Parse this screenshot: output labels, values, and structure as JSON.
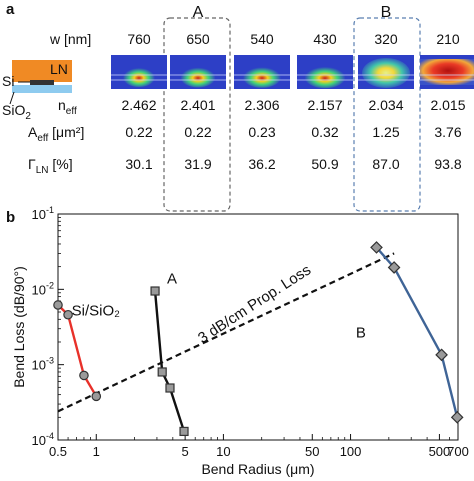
{
  "panel_a": {
    "label": "a",
    "w_header": "w [nm]",
    "groups": [
      {
        "label": "A",
        "color": "#555555"
      },
      {
        "label": "B",
        "color": "#5a7fb0"
      }
    ],
    "widths": [
      "760",
      "650",
      "540",
      "430",
      "320",
      "210"
    ],
    "row_labels": {
      "neff": "n",
      "neff_sub": "eff",
      "aeff": "A",
      "aeff_sub": "eff",
      "aeff_unit": " [μm²]",
      "gamma": "Γ",
      "gamma_sub": "LN",
      "gamma_unit": " [%]"
    },
    "neff": [
      "2.462",
      "2.401",
      "2.306",
      "2.157",
      "2.034",
      "2.015"
    ],
    "aeff": [
      "0.22",
      "0.22",
      "0.23",
      "0.32",
      "1.25",
      "3.76"
    ],
    "gamma": [
      "30.1",
      "31.9",
      "36.2",
      "50.9",
      "87.0",
      "93.8"
    ],
    "schematic": {
      "ln": "LN",
      "si": "Si",
      "sio2": "SiO",
      "sio2_sub": "2",
      "colors": {
        "ln": "#f08a24",
        "si": "#333333",
        "sio2": "#8ecbef"
      }
    }
  },
  "panel_b_label": "b",
  "chart_data": {
    "type": "scatter",
    "xlabel": "Bend Radius (μm)",
    "ylabel": "Bend Loss (dB/90°)",
    "xscale": "log",
    "yscale": "log",
    "xlim": [
      0.5,
      700
    ],
    "ylim": [
      0.0001,
      0.1
    ],
    "x_ticks": [
      0.5,
      1,
      5,
      10,
      50,
      100,
      500,
      700
    ],
    "x_tick_labels": [
      "0.5",
      "1",
      "5",
      "10",
      "50",
      "100",
      "500",
      "700"
    ],
    "y_ticks": [
      0.0001,
      0.001,
      0.01,
      0.1
    ],
    "y_tick_labels": [
      {
        "base": "10",
        "exp": "-4"
      },
      {
        "base": "10",
        "exp": "-3"
      },
      {
        "base": "10",
        "exp": "-2"
      },
      {
        "base": "10",
        "exp": "-1"
      }
    ],
    "grid": false,
    "series": [
      {
        "name": "Si/SiO₂",
        "color": "#e8312a",
        "marker": "circle",
        "x": [
          0.5,
          0.6,
          0.8,
          1.0
        ],
        "y": [
          0.0062,
          0.0046,
          0.00072,
          0.00038
        ]
      },
      {
        "name": "A",
        "color": "#111111",
        "marker": "square",
        "x": [
          2.9,
          3.3,
          3.8,
          4.9
        ],
        "y": [
          0.0095,
          0.0008,
          0.00049,
          0.00013
        ]
      },
      {
        "name": "B",
        "color": "#3f6496",
        "marker": "diamond",
        "x": [
          160,
          220,
          520,
          690
        ],
        "y": [
          0.036,
          0.0195,
          0.00135,
          0.0002
        ]
      }
    ],
    "reference_line": {
      "label": "3 dB/cm Prop. Loss",
      "x": [
        0.5,
        220
      ],
      "y": [
        0.00024,
        0.03
      ]
    }
  }
}
